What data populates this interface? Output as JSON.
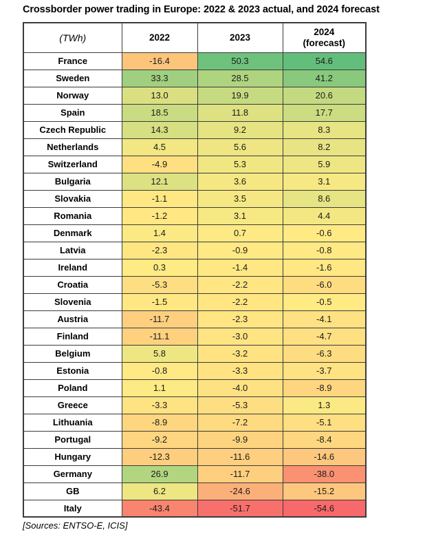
{
  "title": "Crossborder power trading in Europe: 2022 & 2023 actual, and 2024 forecast",
  "footer": "[Sources: ENTSO-E, ICIS]",
  "chart_data": {
    "type": "heatmap",
    "title": "Crossborder power trading in Europe: 2022 & 2023 actual, and 2024 forecast",
    "unit": "TWh",
    "columns": [
      "2022",
      "2023",
      "2024 (forecast)"
    ],
    "header": {
      "unit": "(TWh)",
      "col_2022": "2022",
      "col_2023": "2023",
      "col_2024_line1": "2024",
      "col_2024_line2": "(forecast)"
    },
    "rows": [
      {
        "country": "France",
        "values": [
          -16.4,
          50.3,
          54.6
        ]
      },
      {
        "country": "Sweden",
        "values": [
          33.3,
          28.5,
          41.2
        ]
      },
      {
        "country": "Norway",
        "values": [
          13.0,
          19.9,
          20.6
        ]
      },
      {
        "country": "Spain",
        "values": [
          18.5,
          11.8,
          17.7
        ]
      },
      {
        "country": "Czech Republic",
        "values": [
          14.3,
          9.2,
          8.3
        ]
      },
      {
        "country": "Netherlands",
        "values": [
          4.5,
          5.6,
          8.2
        ]
      },
      {
        "country": "Switzerland",
        "values": [
          -4.9,
          5.3,
          5.9
        ]
      },
      {
        "country": "Bulgaria",
        "values": [
          12.1,
          3.6,
          3.1
        ]
      },
      {
        "country": "Slovakia",
        "values": [
          -1.1,
          3.5,
          8.6
        ]
      },
      {
        "country": "Romania",
        "values": [
          -1.2,
          3.1,
          4.4
        ]
      },
      {
        "country": "Denmark",
        "values": [
          1.4,
          0.7,
          -0.6
        ]
      },
      {
        "country": "Latvia",
        "values": [
          -2.3,
          -0.9,
          -0.8
        ]
      },
      {
        "country": "Ireland",
        "values": [
          0.3,
          -1.4,
          -1.6
        ]
      },
      {
        "country": "Croatia",
        "values": [
          -5.3,
          -2.2,
          -6.0
        ]
      },
      {
        "country": "Slovenia",
        "values": [
          -1.5,
          -2.2,
          -0.5
        ]
      },
      {
        "country": "Austria",
        "values": [
          -11.7,
          -2.3,
          -4.1
        ]
      },
      {
        "country": "Finland",
        "values": [
          -11.1,
          -3.0,
          -4.7
        ]
      },
      {
        "country": "Belgium",
        "values": [
          5.8,
          -3.2,
          -6.3
        ]
      },
      {
        "country": "Estonia",
        "values": [
          -0.8,
          -3.3,
          -3.7
        ]
      },
      {
        "country": "Poland",
        "values": [
          1.1,
          -4.0,
          -8.9
        ]
      },
      {
        "country": "Greece",
        "values": [
          -3.3,
          -5.3,
          1.3
        ]
      },
      {
        "country": "Lithuania",
        "values": [
          -8.9,
          -7.2,
          -5.1
        ]
      },
      {
        "country": "Portugal",
        "values": [
          -9.2,
          -9.9,
          -8.4
        ]
      },
      {
        "country": "Hungary",
        "values": [
          -12.3,
          -11.6,
          -14.6
        ]
      },
      {
        "country": "Germany",
        "values": [
          26.9,
          -11.7,
          -38.0
        ]
      },
      {
        "country": "GB",
        "values": [
          6.2,
          -24.6,
          -15.2
        ]
      },
      {
        "country": "Italy",
        "values": [
          -43.4,
          -51.7,
          -54.6
        ]
      }
    ],
    "value_decimals": 1,
    "color_scale": {
      "type": "3-color",
      "min_value": -54.6,
      "mid_value": 0,
      "max_value": 54.6,
      "min_color": "#F8696B",
      "mid_color": "#FFEB84",
      "max_color": "#63BE7B"
    },
    "source_note": "[Sources: ENTSO-E, ICIS]"
  }
}
